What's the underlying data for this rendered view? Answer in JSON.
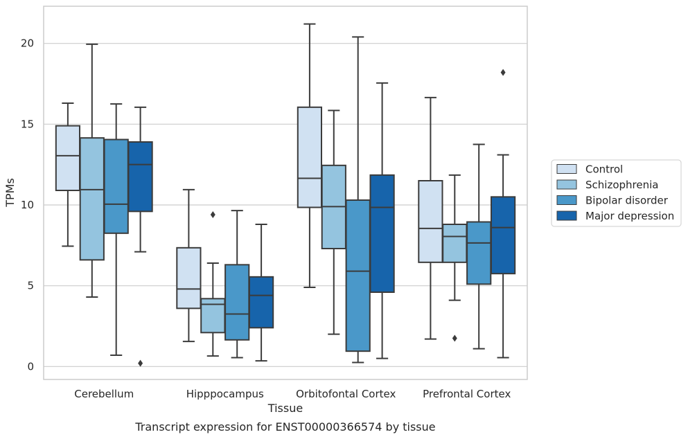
{
  "chart_data": {
    "type": "box",
    "xlabel": "Tissue",
    "ylabel": "TPMs",
    "caption": "Transcript expression for ENST00000366574 by tissue",
    "ylim": [
      -0.8,
      22.3
    ],
    "yticks": [
      0,
      5,
      10,
      15,
      20
    ],
    "grid": "horizontal",
    "legend_position": "right",
    "categories": [
      "Cerebellum",
      "Hipppocampus",
      "Orbitofontal Cortex",
      "Prefrontal Cortex"
    ],
    "series": [
      {
        "name": "Control",
        "color": "#d0e1f2",
        "boxes": [
          {
            "whislo": 7.45,
            "q1": 10.9,
            "med": 13.05,
            "q3": 14.9,
            "whishi": 16.3,
            "fliers": []
          },
          {
            "whislo": 1.55,
            "q1": 3.6,
            "med": 4.8,
            "q3": 7.35,
            "whishi": 10.95,
            "fliers": []
          },
          {
            "whislo": 4.9,
            "q1": 9.85,
            "med": 11.65,
            "q3": 16.05,
            "whishi": 21.2,
            "fliers": []
          },
          {
            "whislo": 1.7,
            "q1": 6.45,
            "med": 8.55,
            "q3": 11.5,
            "whishi": 16.65,
            "fliers": []
          }
        ]
      },
      {
        "name": "Schizophrenia",
        "color": "#94c4df",
        "boxes": [
          {
            "whislo": 4.3,
            "q1": 6.6,
            "med": 10.95,
            "q3": 14.15,
            "whishi": 19.95,
            "fliers": []
          },
          {
            "whislo": 0.65,
            "q1": 2.1,
            "med": 3.85,
            "q3": 4.2,
            "whishi": 6.4,
            "fliers": [
              9.4
            ]
          },
          {
            "whislo": 2.0,
            "q1": 7.3,
            "med": 9.9,
            "q3": 12.45,
            "whishi": 15.85,
            "fliers": []
          },
          {
            "whislo": 4.1,
            "q1": 6.45,
            "med": 8.05,
            "q3": 8.8,
            "whishi": 11.85,
            "fliers": [
              1.75
            ]
          }
        ]
      },
      {
        "name": "Bipolar disorder",
        "color": "#4a98c9",
        "boxes": [
          {
            "whislo": 0.7,
            "q1": 8.25,
            "med": 10.05,
            "q3": 14.05,
            "whishi": 16.25,
            "fliers": []
          },
          {
            "whislo": 0.55,
            "q1": 1.65,
            "med": 3.25,
            "q3": 6.3,
            "whishi": 9.65,
            "fliers": []
          },
          {
            "whislo": 0.25,
            "q1": 0.95,
            "med": 5.9,
            "q3": 10.3,
            "whishi": 20.4,
            "fliers": []
          },
          {
            "whislo": 1.1,
            "q1": 5.1,
            "med": 7.65,
            "q3": 8.95,
            "whishi": 13.75,
            "fliers": []
          }
        ]
      },
      {
        "name": "Major depression",
        "color": "#1764ab",
        "boxes": [
          {
            "whislo": 7.1,
            "q1": 9.6,
            "med": 12.5,
            "q3": 13.9,
            "whishi": 16.05,
            "fliers": [
              0.2
            ]
          },
          {
            "whislo": 0.35,
            "q1": 2.4,
            "med": 4.4,
            "q3": 5.55,
            "whishi": 8.8,
            "fliers": []
          },
          {
            "whislo": 0.5,
            "q1": 4.6,
            "med": 9.85,
            "q3": 11.85,
            "whishi": 17.55,
            "fliers": []
          },
          {
            "whislo": 0.55,
            "q1": 5.75,
            "med": 8.6,
            "q3": 10.5,
            "whishi": 13.1,
            "fliers": [
              18.2
            ]
          }
        ]
      }
    ]
  }
}
